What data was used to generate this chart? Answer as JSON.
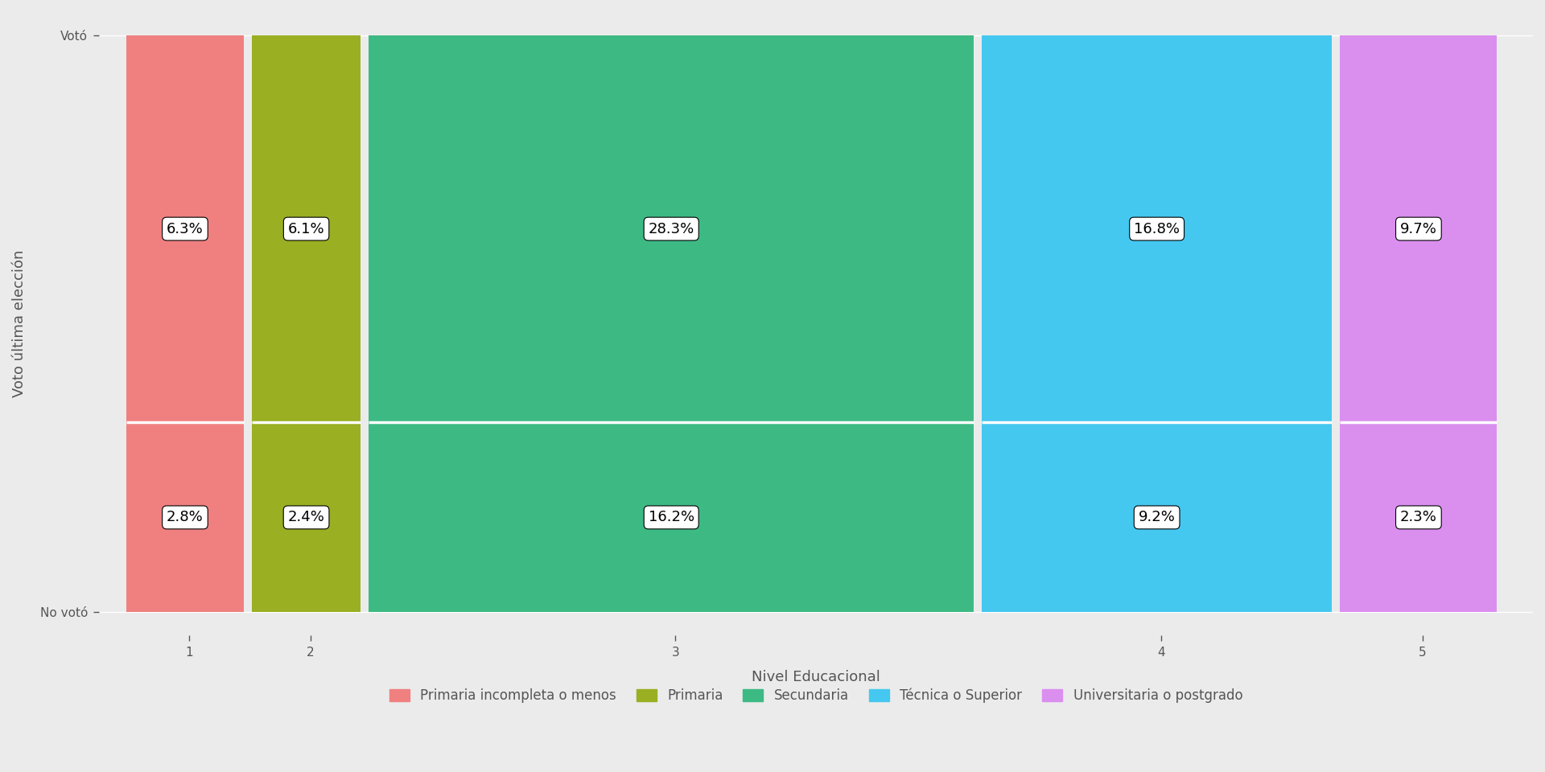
{
  "xlabel": "Nivel Educacional",
  "ylabel": "Voto última elección",
  "categories": [
    1,
    2,
    3,
    4,
    5
  ],
  "voted": [
    6.3,
    6.1,
    28.3,
    16.8,
    9.7
  ],
  "not_voted": [
    2.8,
    2.4,
    16.2,
    9.2,
    2.3
  ],
  "colors": [
    "#F08080",
    "#9aaf22",
    "#3dba84",
    "#45c8f0",
    "#da8fef"
  ],
  "legend_labels": [
    "Primaria incompleta o menos",
    "Primaria",
    "Secundaria",
    "Técnica o Superior",
    "Universitaria o postgrado"
  ],
  "ytick_labels": [
    "No votó",
    "Votó"
  ],
  "background_color": "#EBEBEB",
  "panel_background": "#EBEBEB",
  "grid_color": "white",
  "text_color": "#555555",
  "label_fontsize": 13,
  "tick_fontsize": 11,
  "legend_fontsize": 12
}
